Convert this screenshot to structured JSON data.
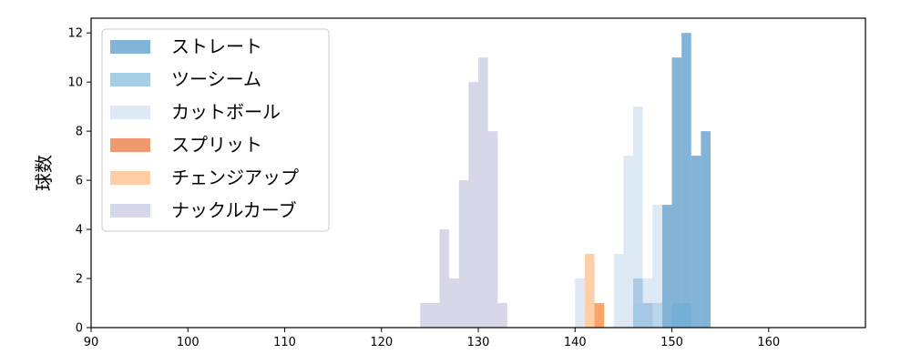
{
  "chart_data": {
    "type": "bar",
    "subtype": "overlapping-histogram",
    "title": "",
    "xlabel": "",
    "ylabel": "球数",
    "xlim": [
      90,
      170
    ],
    "ylim": [
      0,
      12.6
    ],
    "x_ticks": [
      90,
      100,
      110,
      120,
      130,
      140,
      150,
      160
    ],
    "y_ticks": [
      0,
      2,
      4,
      6,
      8,
      10,
      12
    ],
    "grid": false,
    "legend_position": "top-left",
    "series": [
      {
        "name": "ストレート",
        "color": "#3182bd",
        "opacity": 0.6,
        "bins": [
          {
            "x0": 146,
            "x1": 147,
            "value": 2
          },
          {
            "x0": 147,
            "x1": 148,
            "value": 1
          },
          {
            "x0": 149,
            "x1": 150,
            "value": 5
          },
          {
            "x0": 150,
            "x1": 151,
            "value": 11
          },
          {
            "x0": 151,
            "x1": 152,
            "value": 12
          },
          {
            "x0": 152,
            "x1": 153,
            "value": 7
          },
          {
            "x0": 153,
            "x1": 154,
            "value": 8
          }
        ]
      },
      {
        "name": "ツーシーム",
        "color": "#6baed6",
        "opacity": 0.6,
        "bins": [
          {
            "x0": 146,
            "x1": 149,
            "value": 1
          },
          {
            "x0": 150,
            "x1": 152,
            "value": 1
          }
        ]
      },
      {
        "name": "カットボール",
        "color": "#c6dbef",
        "opacity": 0.6,
        "bins": [
          {
            "x0": 140,
            "x1": 141,
            "value": 2
          },
          {
            "x0": 144,
            "x1": 145,
            "value": 3
          },
          {
            "x0": 145,
            "x1": 146,
            "value": 7
          },
          {
            "x0": 146,
            "x1": 147,
            "value": 9
          },
          {
            "x0": 147,
            "x1": 148,
            "value": 2
          },
          {
            "x0": 148,
            "x1": 149,
            "value": 5
          }
        ]
      },
      {
        "name": "スプリット",
        "color": "#e6550d",
        "opacity": 0.6,
        "bins": [
          {
            "x0": 142,
            "x1": 143,
            "value": 1
          }
        ]
      },
      {
        "name": "チェンジアップ",
        "color": "#fdae6b",
        "opacity": 0.6,
        "bins": [
          {
            "x0": 141,
            "x1": 142,
            "value": 3
          },
          {
            "x0": 142,
            "x1": 143,
            "value": 1
          }
        ]
      },
      {
        "name": "ナックルカーブ",
        "color": "#bcbddc",
        "opacity": 0.6,
        "bins": [
          {
            "x0": 124,
            "x1": 126,
            "value": 1
          },
          {
            "x0": 126,
            "x1": 127,
            "value": 4
          },
          {
            "x0": 127,
            "x1": 128,
            "value": 2
          },
          {
            "x0": 128,
            "x1": 129,
            "value": 6
          },
          {
            "x0": 129,
            "x1": 130,
            "value": 10
          },
          {
            "x0": 130,
            "x1": 131,
            "value": 11
          },
          {
            "x0": 131,
            "x1": 132,
            "value": 8
          },
          {
            "x0": 132,
            "x1": 133,
            "value": 1
          }
        ]
      }
    ]
  }
}
